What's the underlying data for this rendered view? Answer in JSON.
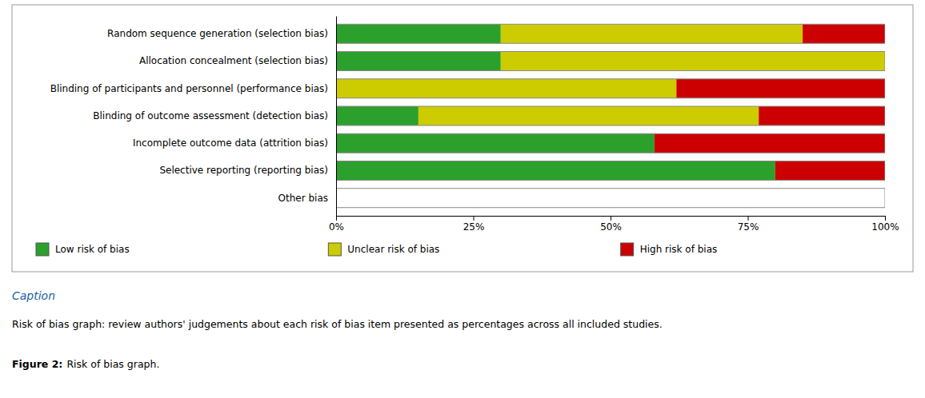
{
  "chart_data": {
    "type": "bar",
    "orientation": "horizontal",
    "stacked": true,
    "categories": [
      "Random sequence generation (selection bias)",
      "Allocation concealment (selection bias)",
      "Blinding of participants and personnel (performance bias)",
      "Blinding of outcome assessment (detection bias)",
      "Incomplete outcome data (attrition bias)",
      "Selective reporting (reporting bias)",
      "Other bias"
    ],
    "series": [
      {
        "name": "Low risk of bias",
        "color": "#2ca02c",
        "values": [
          30,
          30,
          0,
          15,
          58,
          80,
          0
        ]
      },
      {
        "name": "Unclear risk of bias",
        "color": "#cccc00",
        "values": [
          55,
          70,
          62,
          62,
          0,
          0,
          0
        ]
      },
      {
        "name": "High risk of bias",
        "color": "#cc0000",
        "values": [
          15,
          0,
          38,
          23,
          42,
          20,
          0
        ]
      }
    ],
    "xlim": [
      0,
      100
    ],
    "xticks": [
      {
        "value": 0,
        "label": "0%"
      },
      {
        "value": 25,
        "label": "25%"
      },
      {
        "value": 50,
        "label": "50%"
      },
      {
        "value": 75,
        "label": "75%"
      },
      {
        "value": 100,
        "label": "100%"
      }
    ],
    "grid": false,
    "legend": "bottom",
    "annotations": [
      "Caption",
      "Risk of bias graph: review authors' judgements about each risk of bias item presented as percentages across all included studies.",
      "Figure 2:",
      "Risk of bias graph."
    ]
  }
}
